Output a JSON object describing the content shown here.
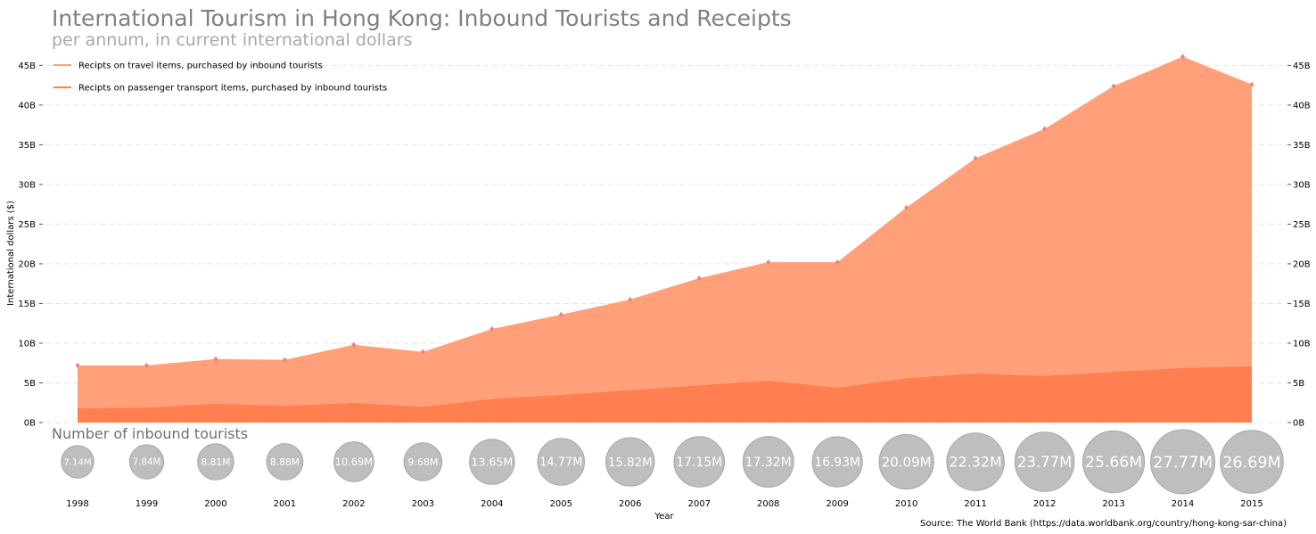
{
  "chart_data": {
    "type": "area",
    "title": "International Tourism in Hong Kong: Inbound Tourists and Receipts",
    "subtitle": "per annum, in current international dollars",
    "ylabel": "International dollars ($)",
    "xlabel": "Year",
    "ylim": [
      0,
      46.5
    ],
    "y_ticks": [
      {
        "value": 0,
        "label": "0B"
      },
      {
        "value": 5,
        "label": "5B"
      },
      {
        "value": 10,
        "label": "10B"
      },
      {
        "value": 15,
        "label": "15B"
      },
      {
        "value": 20,
        "label": "20B"
      },
      {
        "value": 25,
        "label": "25B"
      },
      {
        "value": 30,
        "label": "30B"
      },
      {
        "value": 35,
        "label": "35B"
      },
      {
        "value": 40,
        "label": "40B"
      },
      {
        "value": 45,
        "label": "45B"
      }
    ],
    "grid": "horizontal-dashed",
    "legend_position": "top-left",
    "stacked": true,
    "x": [
      1998,
      1999,
      2000,
      2001,
      2002,
      2003,
      2004,
      2005,
      2006,
      2007,
      2008,
      2009,
      2010,
      2011,
      2012,
      2013,
      2014,
      2015
    ],
    "x_labels": [
      "1998",
      "1999",
      "2000",
      "2001",
      "2002",
      "2003",
      "2004",
      "2005",
      "2006",
      "2007",
      "2008",
      "2009",
      "2010",
      "2011",
      "2012",
      "2013",
      "2014",
      "2015"
    ],
    "series": [
      {
        "name": "Recipts on travel items, purchased by inbound tourists",
        "color": "#ffa07a",
        "values": [
          5.4,
          5.3,
          5.6,
          5.8,
          7.3,
          6.9,
          8.8,
          10.1,
          11.4,
          13.5,
          14.9,
          15.8,
          21.5,
          27.1,
          31.1,
          36.0,
          39.2,
          35.5
        ]
      },
      {
        "name": "Recipts on passenger transport items, purchased by inbound tourists",
        "color": "#ff7f50",
        "values": [
          1.8,
          1.9,
          2.4,
          2.1,
          2.5,
          2.0,
          3.0,
          3.5,
          4.1,
          4.7,
          5.3,
          4.4,
          5.6,
          6.2,
          5.9,
          6.4,
          6.9,
          7.1
        ]
      }
    ],
    "totals_marker_color": "#f08080",
    "bubbles": {
      "title": "Number of inbound tourists",
      "color": "#bebebe",
      "values_millions": [
        7.14,
        7.84,
        8.81,
        8.88,
        10.69,
        9.68,
        13.65,
        14.77,
        15.82,
        17.15,
        17.32,
        16.93,
        20.09,
        22.32,
        23.77,
        25.66,
        27.77,
        26.69
      ],
      "labels": [
        "7.14M",
        "7.84M",
        "8.81M",
        "8.88M",
        "10.69M",
        "9.68M",
        "13.65M",
        "14.77M",
        "15.82M",
        "17.15M",
        "17.32M",
        "16.93M",
        "20.09M",
        "22.32M",
        "23.77M",
        "25.66M",
        "27.77M",
        "26.69M"
      ]
    },
    "source": "Source: The World Bank (https://data.worldbank.org/country/hong-kong-sar-china)"
  }
}
